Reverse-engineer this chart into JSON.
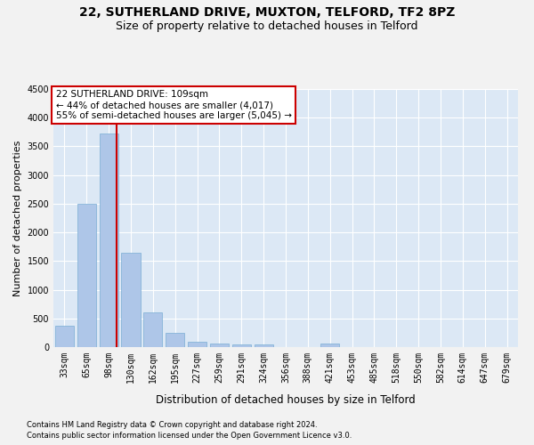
{
  "title1": "22, SUTHERLAND DRIVE, MUXTON, TELFORD, TF2 8PZ",
  "title2": "Size of property relative to detached houses in Telford",
  "xlabel": "Distribution of detached houses by size in Telford",
  "ylabel": "Number of detached properties",
  "categories": [
    "33sqm",
    "65sqm",
    "98sqm",
    "130sqm",
    "162sqm",
    "195sqm",
    "227sqm",
    "259sqm",
    "291sqm",
    "324sqm",
    "356sqm",
    "388sqm",
    "421sqm",
    "453sqm",
    "485sqm",
    "518sqm",
    "550sqm",
    "582sqm",
    "614sqm",
    "647sqm",
    "679sqm"
  ],
  "values": [
    380,
    2500,
    3720,
    1640,
    600,
    250,
    100,
    65,
    50,
    50,
    0,
    0,
    65,
    0,
    0,
    0,
    0,
    0,
    0,
    0,
    0
  ],
  "bar_color": "#aec6e8",
  "bar_edge_color": "#7aadd4",
  "vline_color": "#cc0000",
  "vline_pos": 2.34,
  "ylim": [
    0,
    4500
  ],
  "yticks": [
    0,
    500,
    1000,
    1500,
    2000,
    2500,
    3000,
    3500,
    4000,
    4500
  ],
  "annotation_title": "22 SUTHERLAND DRIVE: 109sqm",
  "annotation_line1": "← 44% of detached houses are smaller (4,017)",
  "annotation_line2": "55% of semi-detached houses are larger (5,045) →",
  "annotation_box_color": "#ffffff",
  "annotation_box_edge": "#cc0000",
  "footnote1": "Contains HM Land Registry data © Crown copyright and database right 2024.",
  "footnote2": "Contains public sector information licensed under the Open Government Licence v3.0.",
  "fig_bg_color": "#f2f2f2",
  "plot_bg_color": "#dce8f5",
  "grid_color": "#ffffff",
  "title1_fontsize": 10,
  "title2_fontsize": 9,
  "xlabel_fontsize": 8.5,
  "ylabel_fontsize": 8,
  "tick_fontsize": 7,
  "annot_fontsize": 7.5,
  "footnote_fontsize": 6
}
